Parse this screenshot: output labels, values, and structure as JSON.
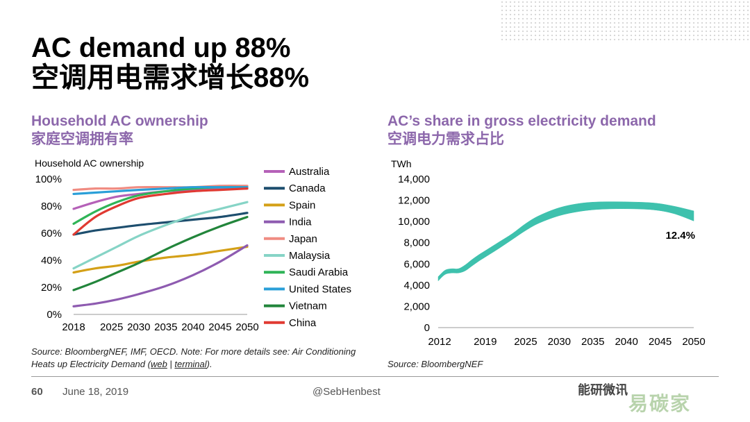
{
  "slide": {
    "title_line1": "AC demand up 88%",
    "title_line2": "空调用电需求增长88%",
    "page_number": "60",
    "date": "June 18, 2019",
    "handle": "@SebHenbest",
    "brand_fragment": "能研微讯",
    "watermark": "易碳家"
  },
  "left": {
    "subtitle_en": "Household AC ownership",
    "subtitle_zh": "家庭空调拥有率",
    "source_pre": "Source: BloombergNEF, IMF, OECD. Note: For more details see: Air Conditioning Heats up Electricity Demand (",
    "source_link1": "web",
    "source_sep": " | ",
    "source_link2": "terminal",
    "source_post": ")."
  },
  "right": {
    "subtitle_en": "AC’s share in gross electricity demand",
    "subtitle_zh": "空调电力需求占比",
    "source": "Source: BloombergNEF"
  },
  "chart_data": [
    {
      "type": "line",
      "ylabel": "Household AC ownership",
      "ylim": [
        0,
        100
      ],
      "y_ticks": [
        "0%",
        "20%",
        "40%",
        "60%",
        "80%",
        "100%"
      ],
      "x_ticks": [
        "2018",
        "2025",
        "2030",
        "2035",
        "2040",
        "2045",
        "2050"
      ],
      "xlim": [
        2018,
        2050
      ],
      "legend_position": "right",
      "series": [
        {
          "name": "Australia",
          "color": "#b561b8",
          "x": [
            2018,
            2022,
            2026,
            2030,
            2035,
            2040,
            2045,
            2050
          ],
          "values": [
            78,
            83,
            87,
            89,
            91,
            92,
            93,
            93
          ]
        },
        {
          "name": "Canada",
          "color": "#1d4e6e",
          "x": [
            2018,
            2022,
            2026,
            2030,
            2035,
            2040,
            2045,
            2050
          ],
          "values": [
            59,
            62,
            64,
            66,
            68,
            70,
            72,
            75
          ]
        },
        {
          "name": "Spain",
          "color": "#d4a017",
          "x": [
            2018,
            2022,
            2026,
            2030,
            2035,
            2040,
            2045,
            2050
          ],
          "values": [
            31,
            34,
            36,
            39,
            42,
            44,
            47,
            50
          ]
        },
        {
          "name": "India",
          "color": "#8e5bb0",
          "x": [
            2018,
            2022,
            2026,
            2030,
            2035,
            2040,
            2045,
            2050
          ],
          "values": [
            6,
            8,
            11,
            15,
            21,
            29,
            39,
            51
          ]
        },
        {
          "name": "Japan",
          "color": "#f08c82",
          "x": [
            2018,
            2022,
            2026,
            2030,
            2035,
            2040,
            2045,
            2050
          ],
          "values": [
            92,
            93,
            93,
            94,
            94,
            94,
            95,
            95
          ]
        },
        {
          "name": "Malaysia",
          "color": "#86d4c6",
          "x": [
            2018,
            2022,
            2026,
            2030,
            2035,
            2040,
            2045,
            2050
          ],
          "values": [
            34,
            42,
            50,
            58,
            66,
            73,
            78,
            83
          ]
        },
        {
          "name": "Saudi Arabia",
          "color": "#2fb457",
          "x": [
            2018,
            2022,
            2026,
            2030,
            2035,
            2040,
            2045,
            2050
          ],
          "values": [
            67,
            76,
            83,
            88,
            91,
            93,
            94,
            94
          ]
        },
        {
          "name": "United States",
          "color": "#2a9fd8",
          "x": [
            2018,
            2022,
            2026,
            2030,
            2035,
            2040,
            2045,
            2050
          ],
          "values": [
            89,
            90,
            91,
            92,
            93,
            94,
            94,
            94
          ]
        },
        {
          "name": "Vietnam",
          "color": "#22853b",
          "x": [
            2018,
            2022,
            2026,
            2030,
            2035,
            2040,
            2045,
            2050
          ],
          "values": [
            18,
            24,
            31,
            38,
            48,
            57,
            65,
            72
          ]
        },
        {
          "name": "China",
          "color": "#e03a32",
          "x": [
            2018,
            2022,
            2026,
            2030,
            2035,
            2040,
            2045,
            2050
          ],
          "values": [
            59,
            72,
            80,
            86,
            89,
            91,
            92,
            93
          ]
        }
      ]
    },
    {
      "type": "area",
      "ylabel": "TWh",
      "ylim": [
        0,
        14000
      ],
      "y_ticks": [
        "0",
        "2,000",
        "4,000",
        "6,000",
        "8,000",
        "10,000",
        "12,000",
        "14,000"
      ],
      "x_ticks": [
        "2012",
        "2019",
        "2025",
        "2030",
        "2035",
        "2040",
        "2045",
        "2050"
      ],
      "xlim": [
        2012,
        2050
      ],
      "annotation": "12.4%",
      "color": "#3ec1ad",
      "x": [
        2012,
        2013,
        2014,
        2015,
        2016,
        2017,
        2018,
        2019,
        2021,
        2023,
        2025,
        2027,
        2030,
        2033,
        2036,
        2040,
        2044,
        2047,
        2050
      ],
      "lower": [
        4400,
        5000,
        5150,
        5150,
        5350,
        5800,
        6250,
        6650,
        7450,
        8300,
        9150,
        9850,
        10550,
        10950,
        11150,
        11200,
        11100,
        10750,
        10050
      ],
      "upper": [
        4800,
        5400,
        5550,
        5550,
        5900,
        6400,
        6850,
        7250,
        8050,
        8850,
        9800,
        10550,
        11300,
        11700,
        11850,
        11850,
        11750,
        11450,
        11000
      ]
    }
  ]
}
